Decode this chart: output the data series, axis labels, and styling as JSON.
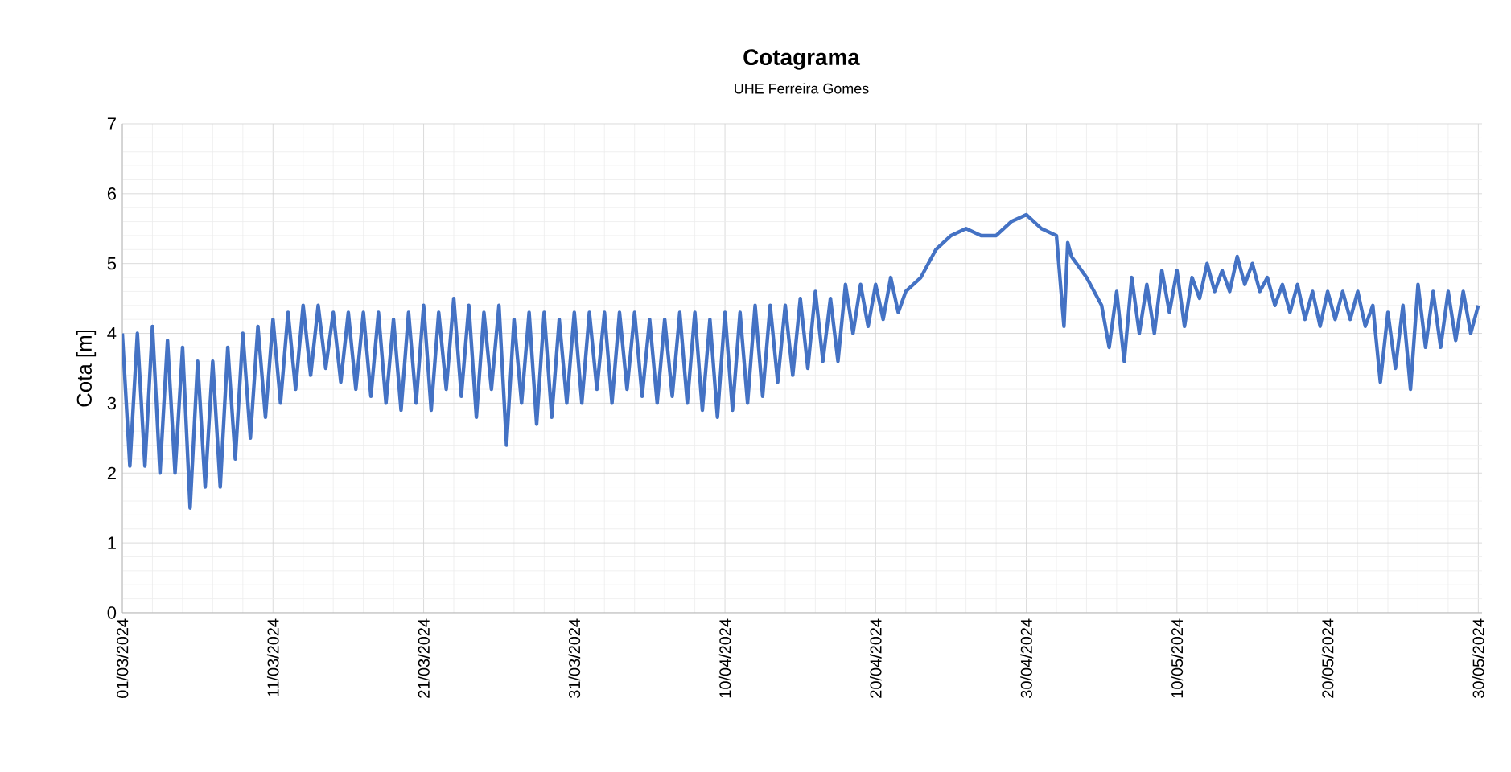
{
  "chart_data": {
    "type": "line",
    "title": "Cotagrama",
    "subtitle": "UHE Ferreira Gomes",
    "ylabel": "Cota [m]",
    "xlim": [
      "2024-03-01",
      "2024-05-30T06:00"
    ],
    "xticks": [
      {
        "value": "2024-03-01",
        "label": "01/03/2024"
      },
      {
        "value": "2024-03-11",
        "label": "11/03/2024"
      },
      {
        "value": "2024-03-21",
        "label": "21/03/2024"
      },
      {
        "value": "2024-03-31",
        "label": "31/03/2024"
      },
      {
        "value": "2024-04-10",
        "label": "10/04/2024"
      },
      {
        "value": "2024-04-20",
        "label": "20/04/2024"
      },
      {
        "value": "2024-04-30",
        "label": "30/04/2024"
      },
      {
        "value": "2024-05-10",
        "label": "10/05/2024"
      },
      {
        "value": "2024-05-20",
        "label": "20/05/2024"
      },
      {
        "value": "2024-05-30",
        "label": "30/05/2024"
      }
    ],
    "ylim": [
      0,
      7
    ],
    "yticks": [
      0,
      1,
      2,
      3,
      4,
      5,
      6,
      7
    ],
    "grid": true,
    "legend": false,
    "marker": "none",
    "line_style": "solid",
    "series": [
      {
        "color": "#4472c4",
        "x": [
          "2024-03-01T00:00",
          "2024-03-01T12:00",
          "2024-03-02T00:00",
          "2024-03-02T12:00",
          "2024-03-03T00:00",
          "2024-03-03T12:00",
          "2024-03-04T00:00",
          "2024-03-04T12:00",
          "2024-03-05T00:00",
          "2024-03-05T12:00",
          "2024-03-06T00:00",
          "2024-03-06T12:00",
          "2024-03-07T00:00",
          "2024-03-07T12:00",
          "2024-03-08T00:00",
          "2024-03-08T12:00",
          "2024-03-09T00:00",
          "2024-03-09T12:00",
          "2024-03-10T00:00",
          "2024-03-10T12:00",
          "2024-03-11T00:00",
          "2024-03-11T12:00",
          "2024-03-12T00:00",
          "2024-03-12T12:00",
          "2024-03-13T00:00",
          "2024-03-13T12:00",
          "2024-03-14T00:00",
          "2024-03-14T12:00",
          "2024-03-15T00:00",
          "2024-03-15T12:00",
          "2024-03-16T00:00",
          "2024-03-16T12:00",
          "2024-03-17T00:00",
          "2024-03-17T12:00",
          "2024-03-18T00:00",
          "2024-03-18T12:00",
          "2024-03-19T00:00",
          "2024-03-19T12:00",
          "2024-03-20T00:00",
          "2024-03-20T12:00",
          "2024-03-21T00:00",
          "2024-03-21T12:00",
          "2024-03-22T00:00",
          "2024-03-22T12:00",
          "2024-03-23T00:00",
          "2024-03-23T12:00",
          "2024-03-24T00:00",
          "2024-03-24T12:00",
          "2024-03-25T00:00",
          "2024-03-25T12:00",
          "2024-03-26T00:00",
          "2024-03-26T12:00",
          "2024-03-27T00:00",
          "2024-03-27T12:00",
          "2024-03-28T00:00",
          "2024-03-28T12:00",
          "2024-03-29T00:00",
          "2024-03-29T12:00",
          "2024-03-30T00:00",
          "2024-03-30T12:00",
          "2024-03-31T00:00",
          "2024-03-31T12:00",
          "2024-04-01T00:00",
          "2024-04-01T12:00",
          "2024-04-02T00:00",
          "2024-04-02T12:00",
          "2024-04-03T00:00",
          "2024-04-03T12:00",
          "2024-04-04T00:00",
          "2024-04-04T12:00",
          "2024-04-05T00:00",
          "2024-04-05T12:00",
          "2024-04-06T00:00",
          "2024-04-06T12:00",
          "2024-04-07T00:00",
          "2024-04-07T12:00",
          "2024-04-08T00:00",
          "2024-04-08T12:00",
          "2024-04-09T00:00",
          "2024-04-09T12:00",
          "2024-04-10T00:00",
          "2024-04-10T12:00",
          "2024-04-11T00:00",
          "2024-04-11T12:00",
          "2024-04-12T00:00",
          "2024-04-12T12:00",
          "2024-04-13T00:00",
          "2024-04-13T12:00",
          "2024-04-14T00:00",
          "2024-04-14T12:00",
          "2024-04-15T00:00",
          "2024-04-15T12:00",
          "2024-04-16T00:00",
          "2024-04-16T12:00",
          "2024-04-17T00:00",
          "2024-04-17T12:00",
          "2024-04-18T00:00",
          "2024-04-18T12:00",
          "2024-04-19T00:00",
          "2024-04-19T12:00",
          "2024-04-20T00:00",
          "2024-04-20T12:00",
          "2024-04-21T00:00",
          "2024-04-21T12:00",
          "2024-04-22T00:00",
          "2024-04-23T00:00",
          "2024-04-24T00:00",
          "2024-04-25T00:00",
          "2024-04-26T00:00",
          "2024-04-27T00:00",
          "2024-04-28T00:00",
          "2024-04-29T00:00",
          "2024-04-30T00:00",
          "2024-05-01T00:00",
          "2024-05-02T00:00",
          "2024-05-02T12:00",
          "2024-05-02T18:00",
          "2024-05-03T00:00",
          "2024-05-04T00:00",
          "2024-05-05T00:00",
          "2024-05-05T12:00",
          "2024-05-06T00:00",
          "2024-05-06T12:00",
          "2024-05-07T00:00",
          "2024-05-07T12:00",
          "2024-05-08T00:00",
          "2024-05-08T12:00",
          "2024-05-09T00:00",
          "2024-05-09T12:00",
          "2024-05-10T00:00",
          "2024-05-10T12:00",
          "2024-05-11T00:00",
          "2024-05-11T12:00",
          "2024-05-12T00:00",
          "2024-05-12T12:00",
          "2024-05-13T00:00",
          "2024-05-13T12:00",
          "2024-05-14T00:00",
          "2024-05-14T12:00",
          "2024-05-15T00:00",
          "2024-05-15T12:00",
          "2024-05-16T00:00",
          "2024-05-16T12:00",
          "2024-05-17T00:00",
          "2024-05-17T12:00",
          "2024-05-18T00:00",
          "2024-05-18T12:00",
          "2024-05-19T00:00",
          "2024-05-19T12:00",
          "2024-05-20T00:00",
          "2024-05-20T12:00",
          "2024-05-21T00:00",
          "2024-05-21T12:00",
          "2024-05-22T00:00",
          "2024-05-22T12:00",
          "2024-05-23T00:00",
          "2024-05-23T12:00",
          "2024-05-24T00:00",
          "2024-05-24T12:00",
          "2024-05-25T00:00",
          "2024-05-25T12:00",
          "2024-05-26T00:00",
          "2024-05-26T12:00",
          "2024-05-27T00:00",
          "2024-05-27T12:00",
          "2024-05-28T00:00",
          "2024-05-28T12:00",
          "2024-05-29T00:00",
          "2024-05-29T12:00",
          "2024-05-30T00:00"
        ],
        "values": [
          4.0,
          2.1,
          4.0,
          2.1,
          4.1,
          2.0,
          3.9,
          2.0,
          3.8,
          1.5,
          3.6,
          1.8,
          3.6,
          1.8,
          3.8,
          2.2,
          4.0,
          2.5,
          4.1,
          2.8,
          4.2,
          3.0,
          4.3,
          3.2,
          4.4,
          3.4,
          4.4,
          3.5,
          4.3,
          3.3,
          4.3,
          3.2,
          4.3,
          3.1,
          4.3,
          3.0,
          4.2,
          2.9,
          4.3,
          3.0,
          4.4,
          2.9,
          4.3,
          3.2,
          4.5,
          3.1,
          4.4,
          2.8,
          4.3,
          3.2,
          4.4,
          2.4,
          4.2,
          3.0,
          4.3,
          2.7,
          4.3,
          2.8,
          4.2,
          3.0,
          4.3,
          3.0,
          4.3,
          3.2,
          4.3,
          3.0,
          4.3,
          3.2,
          4.3,
          3.1,
          4.2,
          3.0,
          4.2,
          3.1,
          4.3,
          3.0,
          4.3,
          2.9,
          4.2,
          2.8,
          4.3,
          2.9,
          4.3,
          3.0,
          4.4,
          3.1,
          4.4,
          3.3,
          4.4,
          3.4,
          4.5,
          3.5,
          4.6,
          3.6,
          4.5,
          3.6,
          4.7,
          4.0,
          4.7,
          4.1,
          4.7,
          4.2,
          4.8,
          4.3,
          4.6,
          4.8,
          5.2,
          5.4,
          5.5,
          5.4,
          5.4,
          5.6,
          5.7,
          5.5,
          5.4,
          4.1,
          5.3,
          5.1,
          4.8,
          4.4,
          3.8,
          4.6,
          3.6,
          4.8,
          4.0,
          4.7,
          4.0,
          4.9,
          4.3,
          4.9,
          4.1,
          4.8,
          4.5,
          5.0,
          4.6,
          4.9,
          4.6,
          5.1,
          4.7,
          5.0,
          4.6,
          4.8,
          4.4,
          4.7,
          4.3,
          4.7,
          4.2,
          4.6,
          4.1,
          4.6,
          4.2,
          4.6,
          4.2,
          4.6,
          4.1,
          4.4,
          3.3,
          4.3,
          3.5,
          4.4,
          3.2,
          4.7,
          3.8,
          4.6,
          3.8,
          4.6,
          3.9,
          4.6,
          4.0,
          4.4
        ]
      }
    ]
  }
}
